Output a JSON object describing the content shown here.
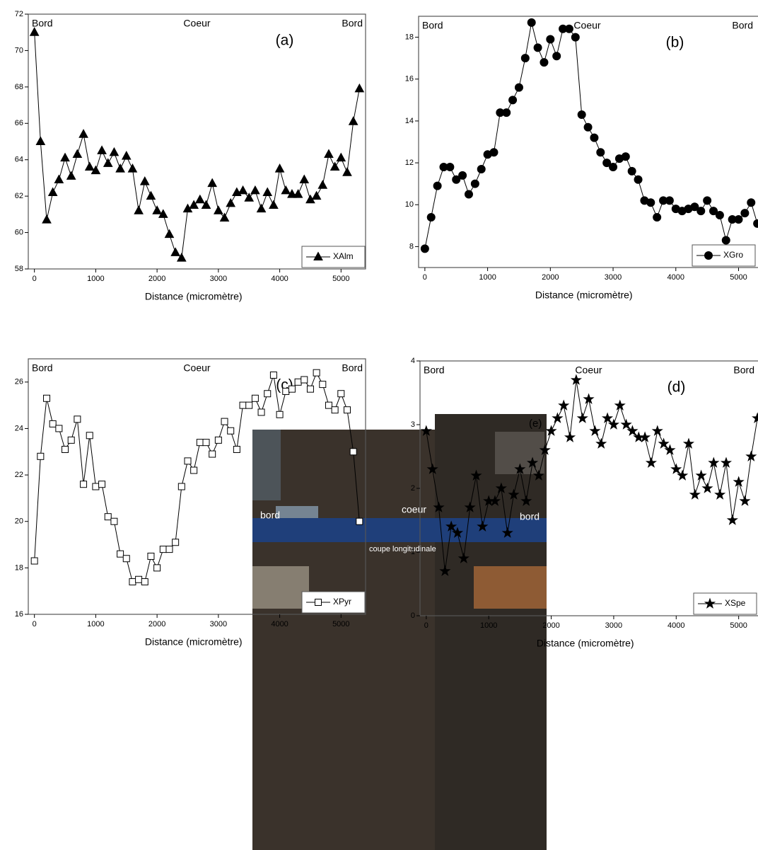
{
  "chart_data": [
    {
      "type": "line",
      "annotations": [
        "Bord",
        "Coeur",
        "Bord"
      ],
      "panel_label": "(a)",
      "x_label": "Distance (micromètre)",
      "xlim": [
        -100,
        5400
      ],
      "xticks": [
        0,
        1000,
        2000,
        3000,
        4000,
        5000
      ],
      "ylim": [
        58,
        72
      ],
      "yticks": [
        58,
        60,
        62,
        64,
        66,
        68,
        70,
        72
      ],
      "legend": "lower right",
      "x": [
        0,
        100,
        200,
        300,
        400,
        500,
        600,
        700,
        800,
        900,
        1000,
        1100,
        1200,
        1300,
        1400,
        1500,
        1600,
        1700,
        1800,
        1900,
        2000,
        2100,
        2200,
        2300,
        2400,
        2500,
        2600,
        2700,
        2800,
        2900,
        3000,
        3100,
        3200,
        3300,
        3400,
        3500,
        3600,
        3700,
        3800,
        3900,
        4000,
        4100,
        4200,
        4300,
        4400,
        4500,
        4600,
        4700,
        4800,
        4900,
        5000,
        5100,
        5200,
        5300
      ],
      "series": [
        {
          "name": "XAlm",
          "color": "#000000",
          "marker": "triangle",
          "filled": true,
          "values": [
            71,
            65,
            60.7,
            62.2,
            62.9,
            64.1,
            63.1,
            64.3,
            65.4,
            63.6,
            63.4,
            64.5,
            63.8,
            64.4,
            63.5,
            64.2,
            63.5,
            61.2,
            62.8,
            62,
            61.2,
            61,
            59.9,
            58.9,
            58.6,
            61.3,
            61.5,
            61.8,
            61.5,
            62.7,
            61.2,
            60.8,
            61.6,
            62.2,
            62.3,
            61.9,
            62.3,
            61.3,
            62.2,
            61.5,
            63.5,
            62.3,
            62.1,
            62.1,
            62.9,
            61.8,
            62,
            62.6,
            64.3,
            63.6,
            64.1,
            63.3,
            66.1,
            67.9
          ]
        }
      ]
    },
    {
      "type": "line",
      "annotations": [
        "Bord",
        "Coeur",
        "Bord"
      ],
      "panel_label": "(b)",
      "x_label": "Distance (micromètre)",
      "xlim": [
        -100,
        5400
      ],
      "xticks": [
        0,
        1000,
        2000,
        3000,
        4000,
        5000
      ],
      "ylim": [
        7,
        19
      ],
      "yticks": [
        8,
        10,
        12,
        14,
        16,
        18
      ],
      "legend": "lower right",
      "x": [
        0,
        100,
        200,
        300,
        400,
        500,
        600,
        700,
        800,
        900,
        1000,
        1100,
        1200,
        1300,
        1400,
        1500,
        1600,
        1700,
        1800,
        1900,
        2000,
        2100,
        2200,
        2300,
        2400,
        2500,
        2600,
        2700,
        2800,
        2900,
        3000,
        3100,
        3200,
        3300,
        3400,
        3500,
        3600,
        3700,
        3800,
        3900,
        4000,
        4100,
        4200,
        4300,
        4400,
        4500,
        4600,
        4700,
        4800,
        4900,
        5000,
        5100,
        5200,
        5300
      ],
      "series": [
        {
          "name": "XGro",
          "color": "#000000",
          "marker": "circle",
          "filled": true,
          "values": [
            7.9,
            9.4,
            10.9,
            11.8,
            11.8,
            11.2,
            11.4,
            10.5,
            11,
            11.7,
            12.4,
            12.5,
            14.4,
            14.4,
            15,
            15.6,
            17,
            18.7,
            17.5,
            16.8,
            17.9,
            17.1,
            18.4,
            18.4,
            18,
            14.3,
            13.7,
            13.2,
            12.5,
            12,
            11.8,
            12.2,
            12.3,
            11.6,
            11.2,
            10.2,
            10.1,
            9.4,
            10.2,
            10.2,
            9.8,
            9.7,
            9.8,
            9.9,
            9.7,
            10.2,
            9.7,
            9.5,
            8.3,
            9.3,
            9.3,
            9.6,
            10.1,
            9.1
          ]
        }
      ]
    },
    {
      "type": "line",
      "annotations": [
        "Bord",
        "Coeur",
        "Bord"
      ],
      "panel_label": "(c)",
      "x_label": "Distance (micromètre)",
      "xlim": [
        -100,
        5400
      ],
      "xticks": [
        0,
        1000,
        2000,
        3000,
        4000,
        5000
      ],
      "ylim": [
        16,
        27
      ],
      "yticks": [
        16,
        18,
        20,
        22,
        24,
        26
      ],
      "legend": "lower right",
      "x": [
        0,
        100,
        200,
        300,
        400,
        500,
        600,
        700,
        800,
        900,
        1000,
        1100,
        1200,
        1300,
        1400,
        1500,
        1600,
        1700,
        1800,
        1900,
        2000,
        2100,
        2200,
        2300,
        2400,
        2500,
        2600,
        2700,
        2800,
        2900,
        3000,
        3100,
        3200,
        3300,
        3400,
        3500,
        3600,
        3700,
        3800,
        3900,
        4000,
        4100,
        4200,
        4300,
        4400,
        4500,
        4600,
        4700,
        4800,
        4900,
        5000,
        5100,
        5200,
        5300
      ],
      "series": [
        {
          "name": "XPyr",
          "color": "#000000",
          "marker": "square",
          "filled": false,
          "values": [
            18.3,
            22.8,
            25.3,
            24.2,
            24,
            23.1,
            23.5,
            24.4,
            21.6,
            23.7,
            21.5,
            21.6,
            20.2,
            20,
            18.6,
            18.4,
            17.4,
            17.5,
            17.4,
            18.5,
            18,
            18.8,
            18.8,
            19.1,
            21.5,
            22.6,
            22.2,
            23.4,
            23.4,
            22.9,
            23.5,
            24.3,
            23.9,
            23.1,
            25,
            25,
            25.3,
            24.7,
            25.5,
            26.3,
            24.6,
            25.6,
            25.7,
            26,
            26.1,
            25.7,
            26.4,
            25.9,
            25,
            24.8,
            25.5,
            24.8,
            23,
            20
          ]
        }
      ]
    },
    {
      "type": "line",
      "annotations": [
        "Bord",
        "Coeur",
        "Bord"
      ],
      "panel_label": "(d)",
      "x_label": "Distance (micromètre)",
      "xlim": [
        -100,
        5400
      ],
      "xticks": [
        0,
        1000,
        2000,
        3000,
        4000,
        5000
      ],
      "ylim": [
        0,
        4
      ],
      "yticks": [
        0,
        1,
        2,
        3,
        4
      ],
      "legend": "lower right",
      "x": [
        0,
        100,
        200,
        300,
        400,
        500,
        600,
        700,
        800,
        900,
        1000,
        1100,
        1200,
        1300,
        1400,
        1500,
        1600,
        1700,
        1800,
        1900,
        2000,
        2100,
        2200,
        2300,
        2400,
        2500,
        2600,
        2700,
        2800,
        2900,
        3000,
        3100,
        3200,
        3300,
        3400,
        3500,
        3600,
        3700,
        3800,
        3900,
        4000,
        4100,
        4200,
        4300,
        4400,
        4500,
        4600,
        4700,
        4800,
        4900,
        5000,
        5100,
        5200,
        5300
      ],
      "series": [
        {
          "name": "XSpe",
          "color": "#000000",
          "marker": "star",
          "filled": true,
          "values": [
            2.9,
            2.3,
            1.7,
            0.7,
            1.4,
            1.3,
            0.9,
            1.7,
            2.2,
            1.4,
            1.8,
            1.8,
            2,
            1.3,
            1.9,
            2.3,
            1.8,
            2.4,
            2.2,
            2.6,
            2.9,
            3.1,
            3.3,
            2.8,
            3.7,
            3.1,
            3.4,
            2.9,
            2.7,
            3.1,
            3,
            3.3,
            3,
            2.9,
            2.8,
            2.8,
            2.4,
            2.9,
            2.7,
            2.6,
            2.3,
            2.2,
            2.7,
            1.9,
            2.2,
            2,
            2.4,
            1.9,
            2.4,
            1.5,
            2.1,
            1.8,
            2.5,
            3.1
          ]
        }
      ]
    }
  ],
  "photo": {
    "label": "(e)",
    "annotations": [
      "bord",
      "coeur",
      "bord",
      "coupe longitudinale"
    ]
  }
}
